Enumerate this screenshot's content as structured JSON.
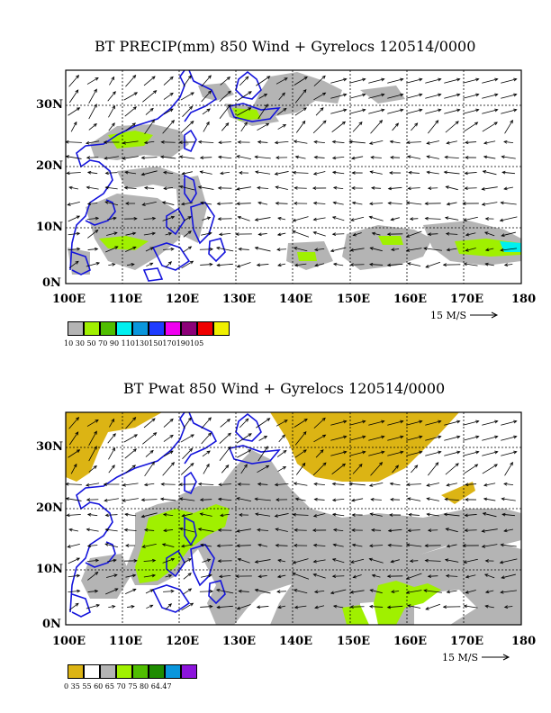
{
  "panels": [
    {
      "title": "BT PRECIP(mm) 850 Wind + Gyrelocs 120514/0000",
      "x_tick_labels": [
        "100E",
        "110E",
        "120E",
        "130E",
        "140E",
        "150E",
        "160E",
        "170E",
        "180"
      ],
      "y_tick_labels": [
        "0N",
        "10N",
        "20N",
        "30N"
      ],
      "reference_vector": "15 M/S",
      "colorbar_colors": [
        "#b4b4b4",
        "#a0f000",
        "#50be00",
        "#00f0f0",
        "#0a96dc",
        "#1e3cff",
        "#f000f0",
        "#8c0078",
        "#f00000",
        "#f0f000"
      ],
      "colorbar_labels": "10  30  50  70  90  110130150170190105"
    },
    {
      "title": "BT Pwat 850 Wind + Gyrelocs 120514/0000",
      "x_tick_labels": [
        "100E",
        "110E",
        "120E",
        "130E",
        "140E",
        "150E",
        "160E",
        "170E",
        "180"
      ],
      "y_tick_labels": [
        "0N",
        "10N",
        "20N",
        "30N"
      ],
      "reference_vector": "15 M/S",
      "colorbar_colors": [
        "#dcb414",
        "#ffffff",
        "#b4b4b4",
        "#a0f000",
        "#50be00",
        "#1e8c00",
        "#0a96dc",
        "#8c14dc"
      ],
      "colorbar_labels": "0    35    55    60    65    70    75    80  64.47"
    }
  ]
}
